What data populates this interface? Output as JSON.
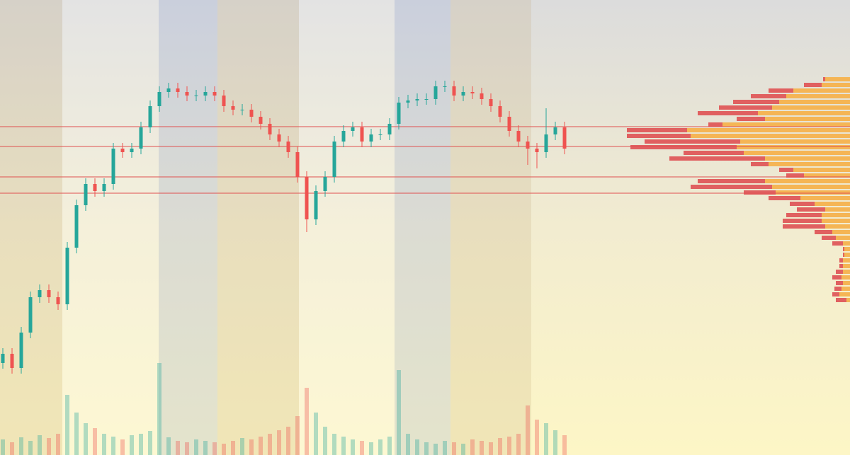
{
  "chart_data": {
    "type": "candlestick",
    "ylim": [
      0,
      643
    ],
    "volume_ylim": [
      0,
      643
    ],
    "up_color": "#26a69a",
    "down_color": "#ef5350",
    "open": [
      130,
      143,
      123,
      173,
      223,
      233,
      223,
      213,
      293,
      353,
      383,
      373,
      383,
      433,
      428,
      433,
      463,
      493,
      513,
      518,
      513,
      508,
      508,
      513,
      508,
      493,
      488,
      488,
      478,
      468,
      453,
      443,
      428,
      393,
      333,
      373,
      393,
      443,
      458,
      463,
      443,
      453,
      453,
      468,
      498,
      501,
      503,
      503,
      521,
      521,
      508,
      513,
      511,
      503,
      493,
      478,
      458,
      443,
      433,
      428,
      453,
      463
    ],
    "high": [
      151,
      151,
      181,
      231,
      241,
      241,
      231,
      301,
      361,
      391,
      391,
      391,
      441,
      441,
      441,
      471,
      501,
      521,
      526,
      526,
      521,
      516,
      521,
      521,
      516,
      501,
      496,
      496,
      486,
      476,
      461,
      451,
      436,
      401,
      381,
      401,
      451,
      466,
      471,
      471,
      461,
      461,
      476,
      506,
      509,
      511,
      511,
      529,
      529,
      529,
      521,
      521,
      519,
      511,
      501,
      486,
      466,
      451,
      441,
      490,
      471,
      471
    ],
    "low": [
      122,
      115,
      115,
      165,
      215,
      215,
      205,
      205,
      285,
      345,
      365,
      365,
      375,
      420,
      420,
      425,
      455,
      485,
      505,
      505,
      500,
      500,
      500,
      500,
      485,
      480,
      480,
      470,
      460,
      445,
      435,
      420,
      385,
      315,
      325,
      365,
      385,
      435,
      450,
      435,
      435,
      445,
      445,
      460,
      490,
      493,
      495,
      495,
      513,
      500,
      500,
      503,
      495,
      485,
      470,
      450,
      435,
      410,
      405,
      420,
      445,
      425
    ],
    "close": [
      143,
      123,
      173,
      223,
      233,
      223,
      213,
      293,
      353,
      383,
      373,
      383,
      433,
      428,
      433,
      463,
      493,
      513,
      518,
      513,
      508,
      508,
      513,
      508,
      493,
      488,
      488,
      478,
      468,
      453,
      443,
      428,
      393,
      333,
      373,
      393,
      443,
      458,
      463,
      443,
      453,
      453,
      468,
      498,
      501,
      503,
      503,
      521,
      521,
      508,
      513,
      511,
      503,
      493,
      478,
      458,
      443,
      433,
      428,
      453,
      463,
      433
    ],
    "volume": [
      22,
      18,
      25,
      20,
      28,
      24,
      30,
      85,
      60,
      45,
      38,
      30,
      26,
      22,
      28,
      30,
      34,
      130,
      25,
      20,
      18,
      22,
      20,
      18,
      16,
      20,
      24,
      22,
      26,
      30,
      35,
      40,
      55,
      95,
      60,
      40,
      30,
      26,
      22,
      20,
      18,
      22,
      26,
      120,
      30,
      22,
      18,
      16,
      20,
      18,
      16,
      22,
      20,
      18,
      24,
      26,
      30,
      70,
      50,
      45,
      35,
      28
    ],
    "levels": {
      "color": "#e05050",
      "values": [
        464,
        436,
        393,
        370
      ]
    },
    "profile": {
      "xlim": [
        0,
        400
      ],
      "sell_color": "#e06060",
      "buy_color": "#f5b555",
      "prices": [
        531,
        523,
        515,
        507,
        499,
        491,
        483,
        475,
        467,
        459,
        451,
        443,
        435,
        427,
        419,
        411,
        403,
        395,
        387,
        379,
        371,
        363,
        355,
        347,
        339,
        331,
        323,
        315,
        307,
        299,
        291,
        283,
        275,
        267,
        259,
        251,
        243,
        235,
        227,
        219
      ],
      "buy": [
        35,
        40,
        80,
        90,
        100,
        110,
        130,
        120,
        180,
        230,
        225,
        155,
        160,
        150,
        120,
        115,
        80,
        65,
        120,
        110,
        105,
        70,
        50,
        35,
        40,
        40,
        35,
        25,
        20,
        10,
        8,
        8,
        10,
        10,
        10,
        12,
        10,
        12,
        15,
        5
      ],
      "sell": [
        3,
        25,
        35,
        50,
        65,
        75,
        85,
        40,
        20,
        85,
        90,
        135,
        150,
        85,
        135,
        25,
        20,
        25,
        95,
        115,
        45,
        45,
        35,
        40,
        50,
        55,
        60,
        25,
        20,
        15,
        2,
        2,
        5,
        5,
        10,
        13,
        10,
        10,
        10,
        15
      ]
    }
  }
}
